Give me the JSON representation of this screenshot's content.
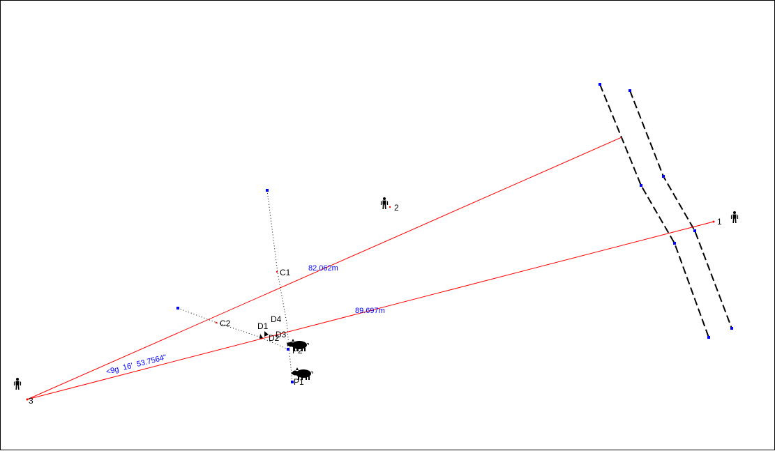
{
  "colors": {
    "measure_line": "#ff0000",
    "measure_text": "#0000ff",
    "handle": "#0000ff",
    "road_edge": "#000000",
    "dotted_line": "#000000",
    "border": "#000000"
  },
  "observers": [
    {
      "label": "1",
      "icon": "person-icon"
    },
    {
      "label": "2",
      "icon": "person-icon"
    },
    {
      "label": "3",
      "icon": "person-icon"
    }
  ],
  "points": {
    "c1": "C1",
    "c2": "C2",
    "d1": "D1",
    "d2": "D2",
    "d3": "D3",
    "d4": "D4",
    "p1": "P1",
    "p2": "P2"
  },
  "measurements": {
    "distance_upper": "82.062m",
    "distance_lower": "89.697m",
    "angle": "<9g  16'  53.7564\""
  },
  "animals": [
    {
      "icon": "pig-icon"
    },
    {
      "icon": "pig-icon"
    }
  ]
}
